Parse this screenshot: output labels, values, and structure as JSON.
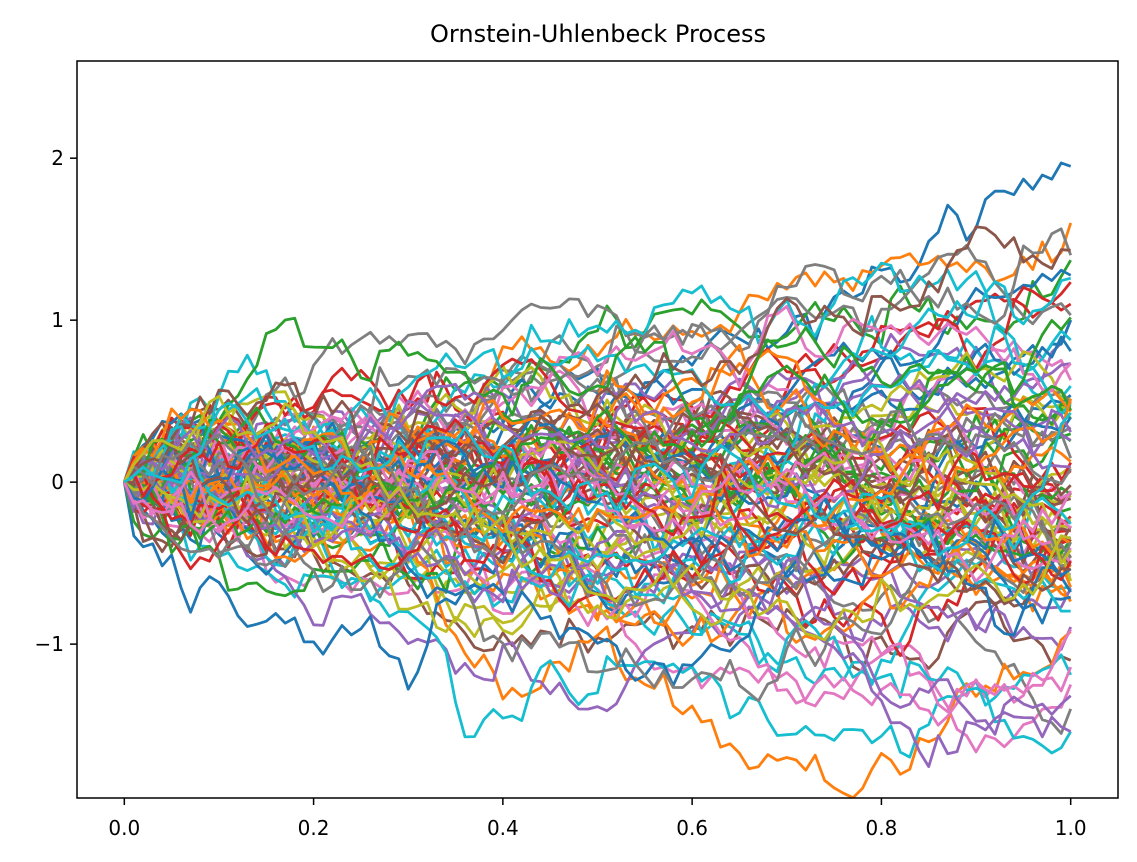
{
  "chart_data": {
    "type": "line",
    "title": "Ornstein-Uhlenbeck Process",
    "xlabel": "",
    "ylabel": "",
    "xlim": [
      -0.05,
      1.05
    ],
    "ylim": [
      -1.95,
      2.6
    ],
    "x_ticks": [
      0.0,
      0.2,
      0.4,
      0.6,
      0.8,
      1.0
    ],
    "x_tick_labels": [
      "0.0",
      "0.2",
      "0.4",
      "0.6",
      "0.8",
      "1.0"
    ],
    "y_ticks": [
      -1,
      0,
      1,
      2
    ],
    "y_tick_labels": [
      "−1",
      "0",
      "1",
      "2"
    ],
    "grid": false,
    "legend": "none",
    "n_steps": 100,
    "x_start": 0.0,
    "x_end": 1.0,
    "n_series": 100,
    "series_initial_value": 0,
    "series_end_values_sample": [
      1.95,
      1.6,
      1.37,
      1.1,
      1.0,
      -1.1,
      -1.25,
      -1.4
    ],
    "colors": [
      "#1f77b4",
      "#ff7f0e",
      "#2ca02c",
      "#d62728",
      "#9467bd",
      "#8c564b",
      "#e377c2",
      "#7f7f7f",
      "#bcbd22",
      "#17becf"
    ]
  }
}
